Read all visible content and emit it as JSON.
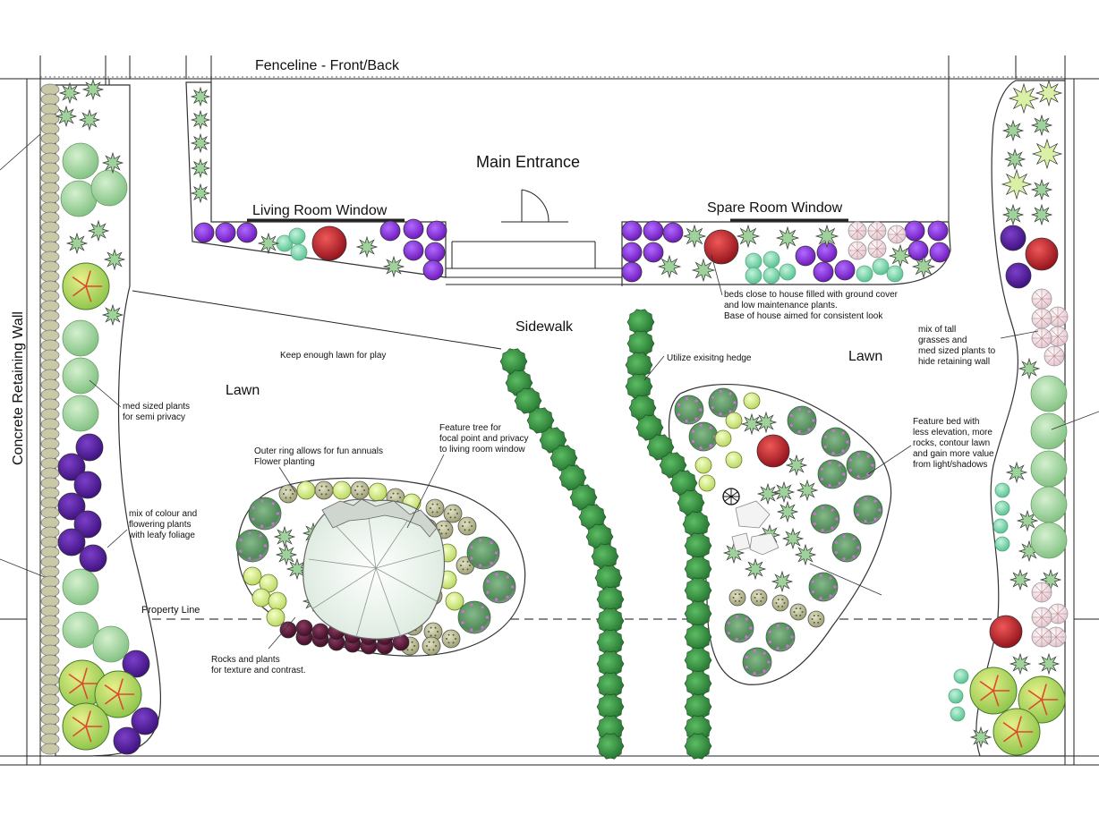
{
  "labels": {
    "fenceline": "Fenceline - Front/Back",
    "main_entrance": "Main Entrance",
    "living_room_window": "Living Room Window",
    "spare_room_window": "Spare Room Window",
    "sidewalk": "Sidewalk",
    "lawn_left": "Lawn",
    "lawn_right": "Lawn",
    "retaining_wall": "Concrete Retaining Wall",
    "property_line": "Property Line"
  },
  "notes": {
    "keep_lawn": "Keep enough lawn for play",
    "med_sized": [
      "med sized plants",
      "for semi privacy"
    ],
    "mix_colour": [
      "mix of colour and",
      "flowering plants",
      "with leafy foliage"
    ],
    "outer_ring": [
      "Outer ring allows for fun annuals",
      "Flower planting"
    ],
    "feature_tree": [
      "Feature tree for",
      "focal point and privacy",
      "to living room window"
    ],
    "rocks_plants": [
      "Rocks and plants",
      "for texture and contrast."
    ],
    "beds_close": [
      "beds close to house filled with ground cover",
      "and low maintenance plants.",
      "Base of house aimed for consistent look"
    ],
    "utilize_hedge": "Utilize exisitng hedge",
    "mix_tall": [
      "mix of tall",
      "grasses and",
      "med sized plants to",
      "hide retaining wall"
    ],
    "feature_bed": [
      "Feature bed with",
      "less elevation, more",
      "rocks, contour lawn",
      "and gain more value",
      "from light/shadows"
    ]
  },
  "colors": {
    "shrub_green": "#8fc78f",
    "purple": "#6a2aa8",
    "violet_flower": "#8a2bd6",
    "red_shrub": "#c8202c",
    "lime": "#c9e27a",
    "hedge": "#2f8a3c",
    "mint": "#7fd3a8",
    "pink_tint": "#e9c9d6",
    "plum": "#5a1838",
    "olive": "#b3b58a"
  }
}
